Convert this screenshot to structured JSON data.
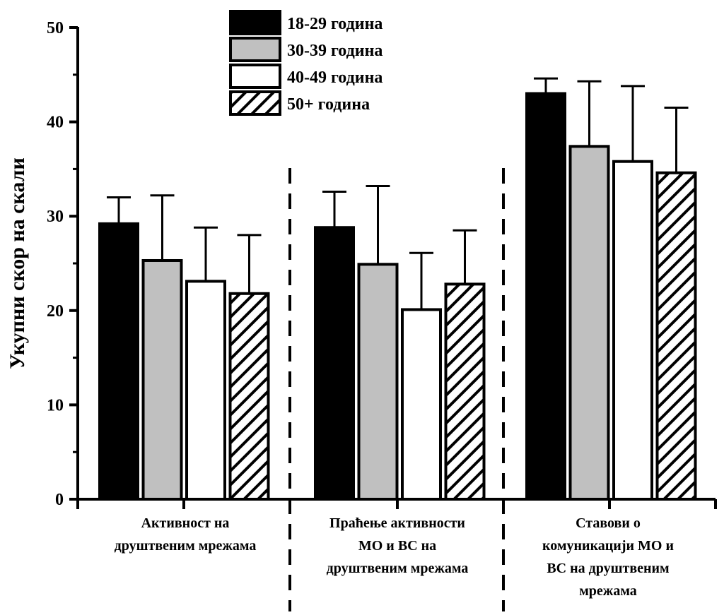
{
  "chart_data": {
    "type": "bar",
    "title": "",
    "xlabel": "",
    "ylabel": "Укупни скор на скали",
    "ylim": [
      0,
      50
    ],
    "yticks": [
      0,
      10,
      20,
      30,
      40,
      50
    ],
    "grid": false,
    "legend_position": "top-center",
    "categories": [
      [
        "Активност на",
        "друштвеним мрежама"
      ],
      [
        "Праћење активности",
        "МО и ВС на",
        "друштвеним мрежама"
      ],
      [
        "Ставови о",
        "комуникацији МО и",
        "ВС на друштвеним",
        "мрежама"
      ]
    ],
    "series": [
      {
        "name": "18-29 година",
        "fill": "#000000",
        "pattern": "solid",
        "values": [
          29.2,
          28.8,
          43.0
        ],
        "error": [
          2.8,
          3.8,
          1.6
        ]
      },
      {
        "name": "30-39 година",
        "fill": "#c0c0c0",
        "pattern": "solid",
        "values": [
          25.3,
          24.9,
          37.4
        ],
        "error": [
          6.9,
          8.3,
          6.9
        ]
      },
      {
        "name": "40-49 година",
        "fill": "#ffffff",
        "pattern": "solid",
        "values": [
          23.1,
          20.1,
          35.8
        ],
        "error": [
          5.7,
          6.0,
          8.0
        ]
      },
      {
        "name": "50+ година",
        "fill": "#ffffff",
        "pattern": "diagonal-hatch",
        "values": [
          21.8,
          22.8,
          34.6
        ],
        "error": [
          6.2,
          5.7,
          6.9
        ]
      }
    ]
  }
}
